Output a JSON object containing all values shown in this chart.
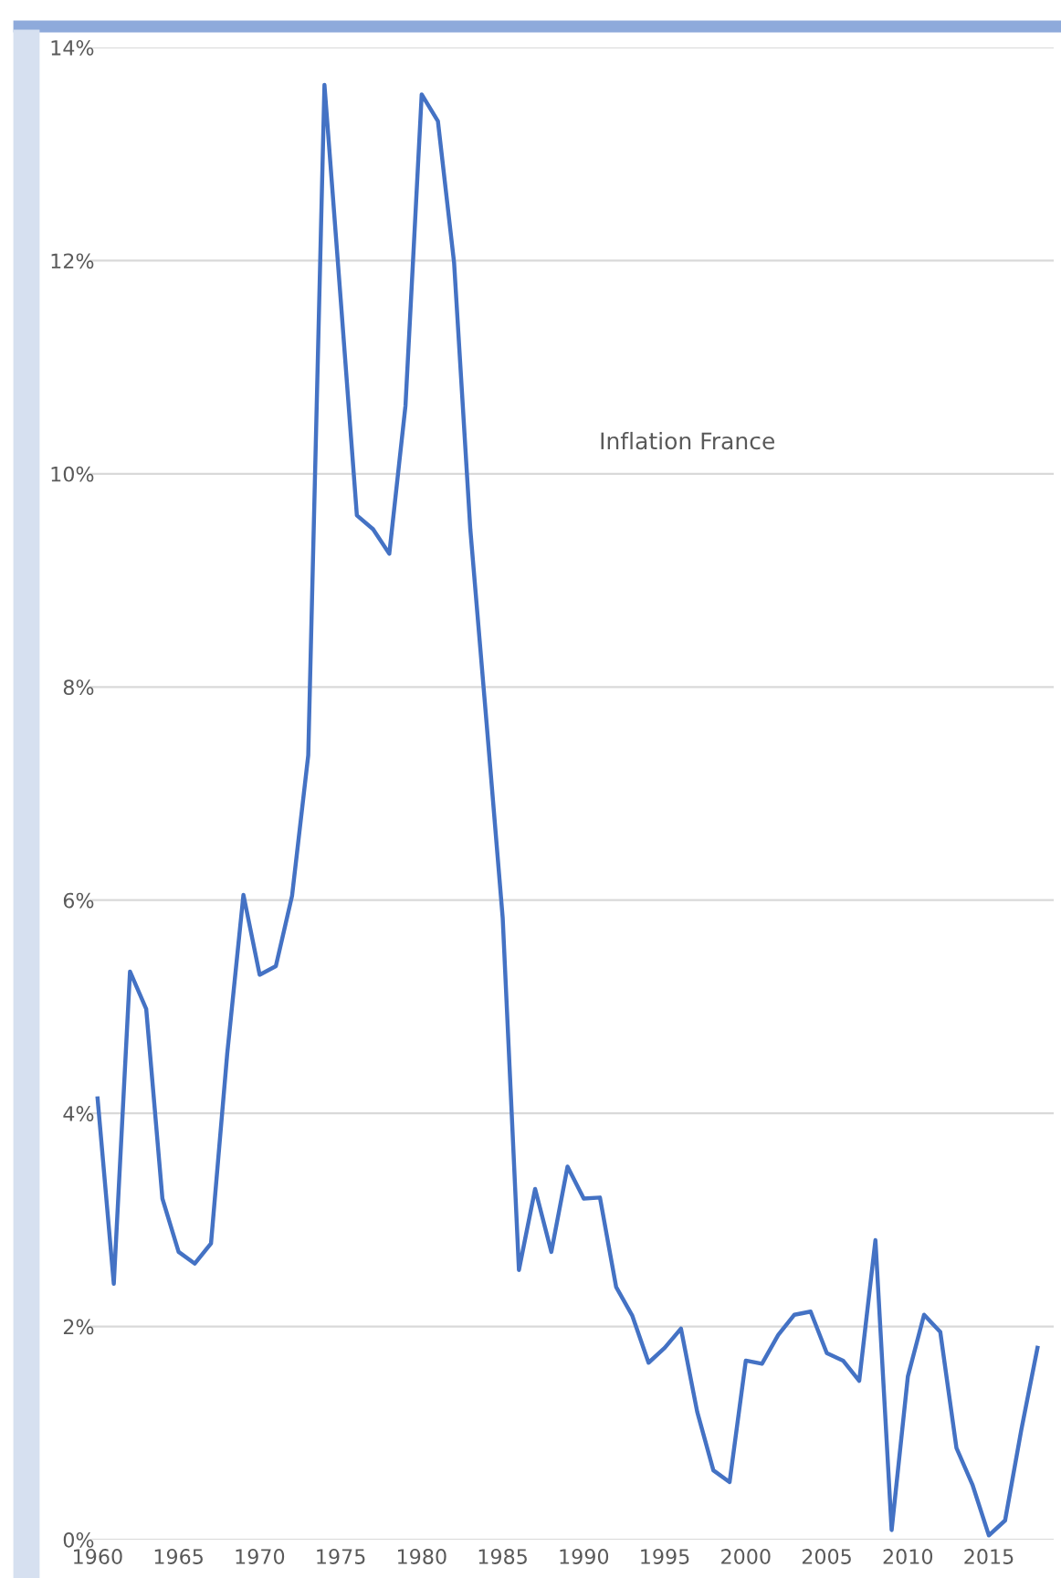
{
  "chart_data": {
    "type": "line",
    "title": "Inflation France",
    "x": [
      1960,
      1961,
      1962,
      1963,
      1964,
      1965,
      1966,
      1967,
      1968,
      1969,
      1970,
      1971,
      1972,
      1973,
      1974,
      1975,
      1976,
      1977,
      1978,
      1979,
      1980,
      1981,
      1982,
      1983,
      1984,
      1985,
      1986,
      1987,
      1988,
      1989,
      1990,
      1991,
      1992,
      1993,
      1994,
      1995,
      1996,
      1997,
      1998,
      1999,
      2000,
      2001,
      2002,
      2003,
      2004,
      2005,
      2006,
      2007,
      2008,
      2009,
      2010,
      2011,
      2012,
      2013,
      2014,
      2015,
      2016,
      2017,
      2018
    ],
    "series": [
      {
        "color": "#4472c4",
        "values": [
          4.14,
          2.4,
          5.33,
          4.98,
          3.2,
          2.7,
          2.59,
          2.78,
          4.56,
          6.05,
          5.3,
          5.38,
          6.04,
          7.36,
          13.65,
          11.64,
          9.61,
          9.48,
          9.25,
          10.64,
          13.56,
          13.31,
          11.98,
          9.48,
          7.67,
          5.83,
          2.53,
          3.29,
          2.7,
          3.5,
          3.2,
          3.21,
          2.37,
          2.1,
          1.66,
          1.8,
          1.98,
          1.2,
          0.65,
          0.54,
          1.68,
          1.65,
          1.92,
          2.11,
          2.14,
          1.75,
          1.68,
          1.49,
          2.81,
          0.09,
          1.53,
          2.11,
          1.95,
          0.86,
          0.51,
          0.04,
          0.18,
          1.03,
          1.8
        ]
      }
    ],
    "xlim": [
      1959.5,
      2019
    ],
    "xticks": [
      1960,
      1965,
      1970,
      1975,
      1980,
      1985,
      1990,
      1995,
      2000,
      2005,
      2010,
      2015
    ],
    "ylim": [
      0,
      14
    ],
    "yticks": [
      {
        "value": 0,
        "label": "0%"
      },
      {
        "value": 2,
        "label": "2%"
      },
      {
        "value": 4,
        "label": "4%"
      },
      {
        "value": 6,
        "label": "6%"
      },
      {
        "value": 8,
        "label": "8%"
      },
      {
        "value": 10,
        "label": "10%"
      },
      {
        "value": 12,
        "label": "12%"
      },
      {
        "value": 14,
        "label": "14%"
      }
    ],
    "grid": "y",
    "marker": "none",
    "line_style": "solid"
  }
}
